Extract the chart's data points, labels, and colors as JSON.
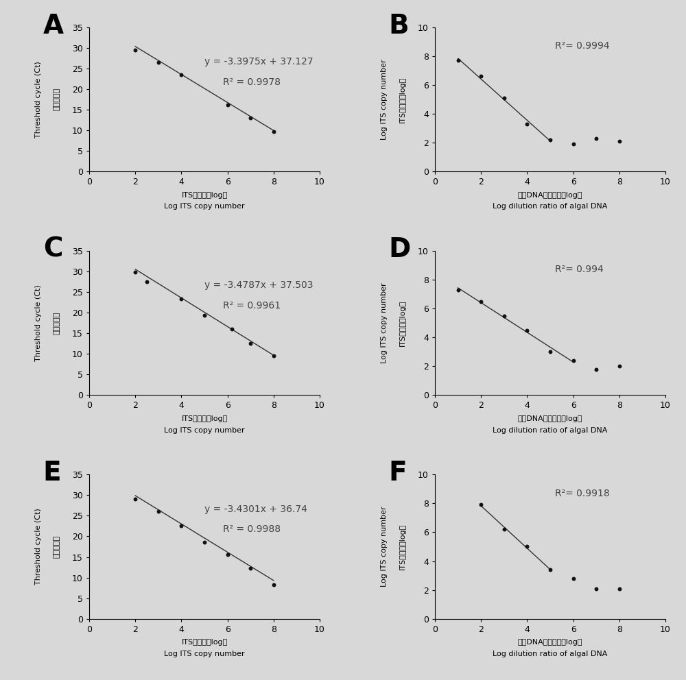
{
  "panels": [
    {
      "label": "A",
      "type": "left",
      "x_data": [
        2,
        3,
        4,
        6,
        7,
        8
      ],
      "y_data": [
        29.5,
        26.5,
        23.5,
        16.2,
        13.0,
        9.7
      ],
      "line_xrange": [
        2,
        8
      ],
      "slope": -3.3975,
      "intercept": 37.127,
      "eq_text": "y = -3.3975x + 37.127",
      "r2_text": "R² = 0.9978",
      "xlim": [
        0,
        10
      ],
      "ylim": [
        0,
        35
      ],
      "xticks": [
        0,
        2,
        4,
        6,
        8,
        10
      ],
      "yticks": [
        0,
        5,
        10,
        15,
        20,
        25,
        30,
        35
      ],
      "xlabel_zh": "ITS拷贝数（log）",
      "xlabel_en": "Log ITS copy number",
      "ylabel_zh": "临界循环値",
      "ylabel_en": "Threshold cycle (Ct)"
    },
    {
      "label": "B",
      "type": "right",
      "x_data": [
        1,
        2,
        3,
        4,
        5,
        6,
        7,
        8
      ],
      "y_data": [
        7.7,
        6.6,
        5.1,
        3.3,
        2.2,
        1.9,
        2.3,
        2.1
      ],
      "line_x": [
        1,
        2,
        3,
        4,
        5
      ],
      "line_y": [
        7.7,
        6.6,
        5.1,
        3.3,
        2.2
      ],
      "r2_text": "R²= 0.9994",
      "xlim": [
        0,
        10
      ],
      "ylim": [
        0,
        10
      ],
      "xticks": [
        0,
        2,
        4,
        6,
        8,
        10
      ],
      "yticks": [
        0,
        2,
        4,
        6,
        8,
        10
      ],
      "xlabel_zh": "藻类DNA稀释倍数（log）",
      "xlabel_en": "Log dilution ratio of algal DNA",
      "ylabel_zh": "ITS拷贝数（log）",
      "ylabel_en": "Log ITS copy number"
    },
    {
      "label": "C",
      "type": "left",
      "x_data": [
        2,
        2.5,
        4,
        5,
        6.2,
        7,
        8
      ],
      "y_data": [
        29.8,
        27.5,
        23.3,
        19.3,
        16.1,
        12.5,
        9.6
      ],
      "line_xrange": [
        2,
        8
      ],
      "slope": -3.4787,
      "intercept": 37.503,
      "eq_text": "y = -3.4787x + 37.503",
      "r2_text": "R² = 0.9961",
      "xlim": [
        0,
        10
      ],
      "ylim": [
        0,
        35
      ],
      "xticks": [
        0,
        2,
        4,
        6,
        8,
        10
      ],
      "yticks": [
        0,
        5,
        10,
        15,
        20,
        25,
        30,
        35
      ],
      "xlabel_zh": "ITS拷贝数（log）",
      "xlabel_en": "Log ITS copy number",
      "ylabel_zh": "临界循环値",
      "ylabel_en": "Threshold cycle (Ct)"
    },
    {
      "label": "D",
      "type": "right",
      "x_data": [
        1,
        2,
        3,
        4,
        5,
        6,
        7,
        8
      ],
      "y_data": [
        7.3,
        6.5,
        5.5,
        4.5,
        3.0,
        2.4,
        1.8,
        2.0
      ],
      "line_x": [
        1,
        2,
        3,
        4,
        5,
        6
      ],
      "line_y": [
        7.3,
        6.5,
        5.5,
        4.5,
        3.0,
        2.4
      ],
      "r2_text": "R²= 0.994",
      "xlim": [
        0,
        10
      ],
      "ylim": [
        0,
        10
      ],
      "xticks": [
        0,
        2,
        4,
        6,
        8,
        10
      ],
      "yticks": [
        0,
        2,
        4,
        6,
        8,
        10
      ],
      "xlabel_zh": "藻类DNA稀释倍数（log）",
      "xlabel_en": "Log dilution ratio of algal DNA",
      "ylabel_zh": "ITS拷贝数（log）",
      "ylabel_en": "Log ITS copy number"
    },
    {
      "label": "E",
      "type": "left",
      "x_data": [
        2,
        3,
        4,
        5,
        6,
        7,
        8
      ],
      "y_data": [
        29.0,
        26.0,
        22.5,
        18.5,
        15.5,
        12.3,
        8.3
      ],
      "line_xrange": [
        2,
        8
      ],
      "slope": -3.4301,
      "intercept": 36.74,
      "eq_text": "y = -3.4301x + 36.74",
      "r2_text": "R² = 0.9988",
      "xlim": [
        0,
        10
      ],
      "ylim": [
        0,
        35
      ],
      "xticks": [
        0,
        2,
        4,
        6,
        8,
        10
      ],
      "yticks": [
        0,
        5,
        10,
        15,
        20,
        25,
        30,
        35
      ],
      "xlabel_zh": "ITS拷贝数（log）",
      "xlabel_en": "Log ITS copy number",
      "ylabel_zh": "临界循环値",
      "ylabel_en": "Threshold cycle (Ct)"
    },
    {
      "label": "F",
      "type": "right",
      "x_data": [
        2,
        3,
        4,
        5,
        6,
        7,
        8
      ],
      "y_data": [
        7.9,
        6.2,
        5.0,
        3.4,
        2.8,
        2.1,
        2.1
      ],
      "line_x": [
        2,
        3,
        4,
        5
      ],
      "line_y": [
        7.9,
        6.2,
        5.0,
        3.4
      ],
      "r2_text": "R²= 0.9918",
      "xlim": [
        0,
        10
      ],
      "ylim": [
        0,
        10
      ],
      "xticks": [
        0,
        2,
        4,
        6,
        8,
        10
      ],
      "yticks": [
        0,
        2,
        4,
        6,
        8,
        10
      ],
      "xlabel_zh": "藻类DNA稀释倍数（log）",
      "xlabel_en": "Log dilution ratio of algal DNA",
      "ylabel_zh": "ITS拷贝数（log）",
      "ylabel_en": "Log ITS copy number"
    }
  ],
  "bg_color": "#d8d8d8",
  "dot_color": "#111111",
  "line_color": "#333333",
  "tick_fontsize": 9,
  "axis_label_fontsize_en": 8,
  "axis_label_fontsize_zh": 8,
  "eq_fontsize": 10,
  "panel_label_fontsize": 28
}
